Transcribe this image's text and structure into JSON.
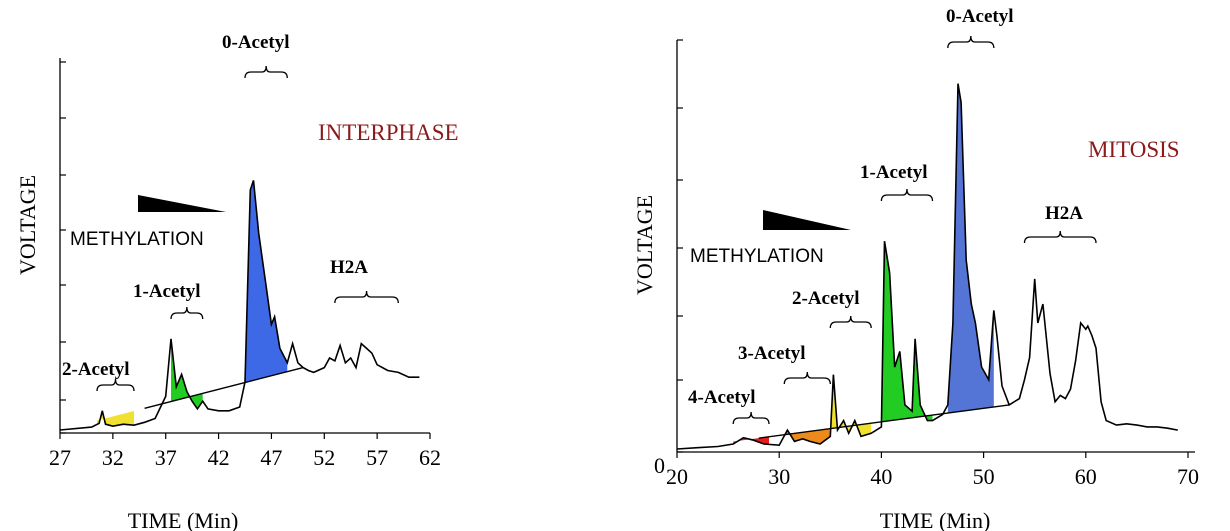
{
  "chart_data": [
    {
      "type": "area",
      "title": "INTERPHASE",
      "xlabel": "TIME (Min)",
      "ylabel": "VOLTAGE",
      "xlim": [
        27,
        62
      ],
      "x_ticks": [
        "27",
        "32",
        "37",
        "42",
        "47",
        "52",
        "57",
        "62"
      ],
      "annotation": "METHYLATION",
      "groups": [
        {
          "name": "2-Acetyl",
          "range": [
            30.5,
            34
          ],
          "color": "#f0e030"
        },
        {
          "name": "1-Acetyl",
          "range": [
            37.5,
            40.5
          ],
          "color": "#22cc22"
        },
        {
          "name": "0-Acetyl",
          "range": [
            44.5,
            48.5
          ],
          "color": "#3d68e6"
        },
        {
          "name": "H2A",
          "range": [
            53,
            59
          ],
          "color": ""
        }
      ],
      "series": [
        {
          "x": [
            27,
            30,
            30.7,
            31,
            31.3,
            32,
            33,
            34,
            35,
            36,
            37,
            37.5,
            38,
            38.5,
            39,
            39.5,
            40,
            40.5,
            41,
            42,
            43,
            44,
            44.5,
            45,
            45.3,
            45.8,
            46.5,
            47,
            47.3,
            47.8,
            48.5,
            49,
            49.5,
            50,
            50.5,
            51,
            52,
            52.5,
            53,
            53.5,
            54,
            54.5,
            55,
            55.5,
            56,
            56.5,
            57,
            58,
            59,
            60,
            61
          ],
          "y": [
            0,
            3,
            7,
            20,
            6,
            4,
            6,
            5,
            8,
            12,
            35,
            95,
            45,
            58,
            40,
            30,
            22,
            30,
            22,
            20,
            20,
            24,
            50,
            250,
            260,
            205,
            150,
            110,
            118,
            85,
            70,
            90,
            70,
            65,
            62,
            60,
            65,
            75,
            72,
            88,
            70,
            75,
            65,
            90,
            85,
            80,
            68,
            62,
            60,
            55,
            55
          ]
        }
      ]
    },
    {
      "type": "area",
      "title": "MITOSIS",
      "xlabel": "TIME (Min)",
      "ylabel": "VOLTAGE",
      "xlim": [
        20,
        70
      ],
      "x_ticks": [
        "20",
        "30",
        "40",
        "50",
        "60",
        "70"
      ],
      "y_origin_label": "0",
      "annotation": "METHYLATION",
      "groups": [
        {
          "name": "4-Acetyl",
          "range": [
            25.5,
            29
          ],
          "color": "#e81c1c"
        },
        {
          "name": "3-Acetyl",
          "range": [
            30.5,
            35
          ],
          "color": "#ee8a1c"
        },
        {
          "name": "2-Acetyl",
          "range": [
            35,
            39
          ],
          "color": "#f0e030"
        },
        {
          "name": "1-Acetyl",
          "range": [
            40,
            45
          ],
          "color": "#22cc22"
        },
        {
          "name": "0-Acetyl",
          "range": [
            46.5,
            51
          ],
          "color": "#5575d6"
        },
        {
          "name": "H2A",
          "range": [
            54,
            61
          ],
          "color": ""
        }
      ],
      "series": [
        {
          "x": [
            20,
            22,
            24,
            25.5,
            26.5,
            27.5,
            28.5,
            30,
            30.8,
            31.5,
            32.3,
            33,
            34,
            35,
            35.3,
            35.7,
            36.3,
            36.8,
            37.4,
            38,
            39,
            40,
            40.3,
            40.8,
            41.3,
            41.8,
            42.3,
            43,
            43.3,
            43.8,
            44.5,
            45,
            46,
            46.5,
            47,
            47.5,
            47.8,
            48.3,
            48.8,
            49.2,
            49.8,
            50.5,
            51,
            51.3,
            51.8,
            52.5,
            53.5,
            54,
            54.5,
            55,
            55.3,
            55.8,
            56.5,
            57,
            57.5,
            58,
            58.5,
            59,
            59.5,
            60,
            60.2,
            60.6,
            61,
            61.5,
            62,
            63,
            64,
            65,
            66,
            67,
            68,
            69
          ],
          "y": [
            0,
            2,
            4,
            8,
            18,
            14,
            8,
            6,
            30,
            12,
            16,
            12,
            8,
            20,
            118,
            30,
            45,
            25,
            45,
            20,
            25,
            35,
            330,
            280,
            130,
            155,
            70,
            60,
            175,
            70,
            45,
            45,
            55,
            70,
            200,
            580,
            550,
            300,
            230,
            200,
            130,
            110,
            220,
            180,
            100,
            70,
            80,
            110,
            145,
            270,
            200,
            230,
            120,
            75,
            85,
            80,
            95,
            140,
            200,
            190,
            195,
            180,
            160,
            75,
            45,
            38,
            40,
            38,
            35,
            35,
            33,
            30
          ]
        }
      ]
    }
  ]
}
